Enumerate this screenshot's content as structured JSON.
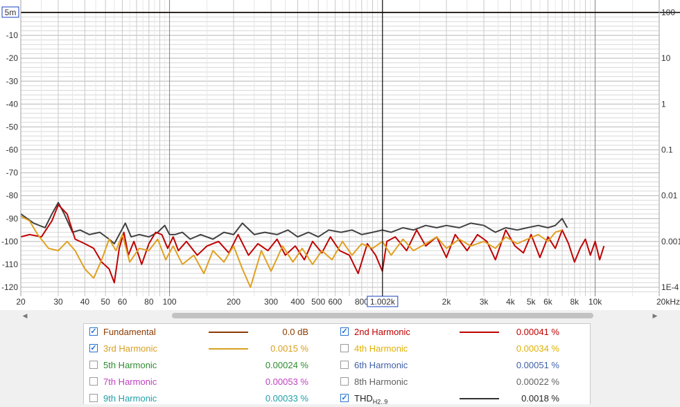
{
  "chart_data": {
    "type": "line",
    "title": "",
    "xlabel": "",
    "ylabel": "",
    "x_scale": "log",
    "xlim": [
      20,
      20000
    ],
    "ylim": [
      -125,
      5
    ],
    "y_right_scale": "log",
    "y_right_lim": [
      0.0001,
      100
    ],
    "grid": true,
    "legend_position": "bottom",
    "x_ticks": [
      "20",
      "30",
      "40",
      "50",
      "60",
      "80",
      "100",
      "200",
      "300",
      "400",
      "500",
      "600",
      "800",
      "1.002k",
      "2k",
      "3k",
      "4k",
      "5k",
      "6k",
      "8k",
      "10k",
      "20kHz"
    ],
    "y_ticks": [
      "5m",
      "-10",
      "-20",
      "-30",
      "-40",
      "-50",
      "-60",
      "-70",
      "-80",
      "-90",
      "-100",
      "-110",
      "-120"
    ],
    "y_right_ticks": [
      "100",
      "10",
      "1",
      "0.1",
      "0.01",
      "0.001",
      "1E-4"
    ],
    "cursor_x_label": "1.002k",
    "cursor_y_label": "5m",
    "series": [
      {
        "name": "Fundamental",
        "color": "#8b4513",
        "x": [
          20,
          20000
        ],
        "y": [
          0,
          0
        ]
      },
      {
        "name": "THD",
        "color": "#404040",
        "x": [
          20,
          23,
          26,
          28,
          30,
          32,
          35,
          38,
          42,
          47,
          52,
          55,
          58,
          62,
          66,
          72,
          80,
          88,
          95,
          100,
          106,
          115,
          125,
          140,
          160,
          180,
          200,
          220,
          250,
          280,
          320,
          360,
          400,
          450,
          500,
          560,
          640,
          720,
          800,
          900,
          1000,
          1100,
          1250,
          1400,
          1600,
          1800,
          2000,
          2300,
          2600,
          3000,
          3400,
          3800,
          4300,
          4800,
          5400,
          6000,
          6500,
          7000,
          7400
        ],
        "y": [
          -88,
          -92,
          -94,
          -88,
          -83,
          -88,
          -96,
          -95,
          -97,
          -96,
          -99,
          -101,
          -97,
          -92,
          -98,
          -97,
          -98,
          -96,
          -93,
          -97,
          -97,
          -96,
          -99,
          -97,
          -99,
          -96,
          -97,
          -92,
          -97,
          -96,
          -97,
          -95,
          -98,
          -96,
          -98,
          -95,
          -96,
          -95,
          -97,
          -96,
          -95,
          -96,
          -94,
          -95,
          -93,
          -94,
          -93,
          -94,
          -92,
          -93,
          -96,
          -94,
          -95,
          -94,
          -93,
          -94,
          -93,
          -90,
          -94
        ]
      },
      {
        "name": "2nd Harmonic",
        "color": "#c00000",
        "x": [
          20,
          22,
          25,
          28,
          30,
          33,
          36,
          40,
          44,
          48,
          52,
          55,
          58,
          61,
          64,
          68,
          74,
          80,
          86,
          92,
          98,
          104,
          110,
          120,
          135,
          150,
          170,
          190,
          210,
          235,
          260,
          290,
          320,
          350,
          390,
          430,
          470,
          520,
          570,
          630,
          700,
          770,
          850,
          930,
          1000,
          1050,
          1150,
          1300,
          1450,
          1600,
          1800,
          2000,
          2200,
          2500,
          2800,
          3100,
          3400,
          3800,
          4200,
          4600,
          5000,
          5500,
          6000,
          6500,
          7000,
          7500,
          8000,
          8500,
          9000,
          9500,
          10000,
          10500,
          11000
        ],
        "y": [
          -98,
          -97,
          -98,
          -91,
          -84,
          -88,
          -99,
          -101,
          -103,
          -109,
          -112,
          -118,
          -103,
          -96,
          -106,
          -100,
          -110,
          -101,
          -96,
          -97,
          -103,
          -98,
          -104,
          -100,
          -106,
          -102,
          -100,
          -105,
          -97,
          -106,
          -101,
          -104,
          -99,
          -106,
          -102,
          -108,
          -100,
          -105,
          -98,
          -104,
          -106,
          -114,
          -101,
          -106,
          -113,
          -100,
          -98,
          -104,
          -95,
          -102,
          -98,
          -107,
          -97,
          -104,
          -97,
          -100,
          -108,
          -95,
          -102,
          -105,
          -97,
          -107,
          -98,
          -103,
          -95,
          -101,
          -109,
          -103,
          -99,
          -106,
          -100,
          -108,
          -102
        ]
      },
      {
        "name": "3rd Harmonic",
        "color": "#e0a020",
        "x": [
          20,
          22,
          24,
          27,
          30,
          33,
          36,
          40,
          44,
          48,
          52,
          56,
          60,
          65,
          72,
          80,
          88,
          96,
          104,
          115,
          130,
          145,
          160,
          180,
          200,
          220,
          240,
          270,
          300,
          340,
          380,
          420,
          470,
          520,
          580,
          650,
          720,
          800,
          900,
          1000,
          1100,
          1250,
          1400,
          1600,
          1800,
          2000,
          2300,
          2600,
          3000,
          3400,
          3800,
          4300,
          4800,
          5400,
          6000,
          6500,
          7000
        ],
        "y": [
          -89,
          -91,
          -97,
          -103,
          -104,
          -100,
          -104,
          -112,
          -116,
          -108,
          -99,
          -104,
          -97,
          -109,
          -103,
          -104,
          -99,
          -108,
          -102,
          -110,
          -106,
          -114,
          -104,
          -109,
          -102,
          -112,
          -120,
          -104,
          -113,
          -102,
          -109,
          -103,
          -110,
          -104,
          -108,
          -100,
          -106,
          -101,
          -103,
          -100,
          -106,
          -99,
          -104,
          -101,
          -98,
          -103,
          -99,
          -102,
          -100,
          -103,
          -98,
          -101,
          -99,
          -97,
          -100,
          -96,
          -95
        ]
      }
    ]
  },
  "legend": {
    "items": [
      {
        "label": "Fundamental",
        "value": "0.0 dB",
        "checked": true,
        "color": "#8b3a00"
      },
      {
        "label": "2nd Harmonic",
        "value": "0.00041 %",
        "checked": true,
        "color": "#c00000"
      },
      {
        "label": "3rd Harmonic",
        "value": "0.0015 %",
        "checked": true,
        "color": "#d8a020"
      },
      {
        "label": "4th Harmonic",
        "value": "0.00034 %",
        "checked": false,
        "color": "#e0b000"
      },
      {
        "label": "5th Harmonic",
        "value": "0.00024 %",
        "checked": false,
        "color": "#2e8b2e"
      },
      {
        "label": "6th Harmonic",
        "value": "0.00051 %",
        "checked": false,
        "color": "#4060a8"
      },
      {
        "label": "7th Harmonic",
        "value": "0.00053 %",
        "checked": false,
        "color": "#c040c0"
      },
      {
        "label": "8th Harmonic",
        "value": "0.00022 %",
        "checked": false,
        "color": "#606060"
      },
      {
        "label": "9th Harmonic",
        "value": "0.00033 %",
        "checked": false,
        "color": "#20a0a8"
      },
      {
        "label": "THD",
        "label_sub": "H2..9",
        "value": "0.0018 %",
        "checked": true,
        "color": "#303030"
      }
    ]
  },
  "scrollbar": {
    "left_arrow": "◀",
    "right_arrow": "▶"
  }
}
